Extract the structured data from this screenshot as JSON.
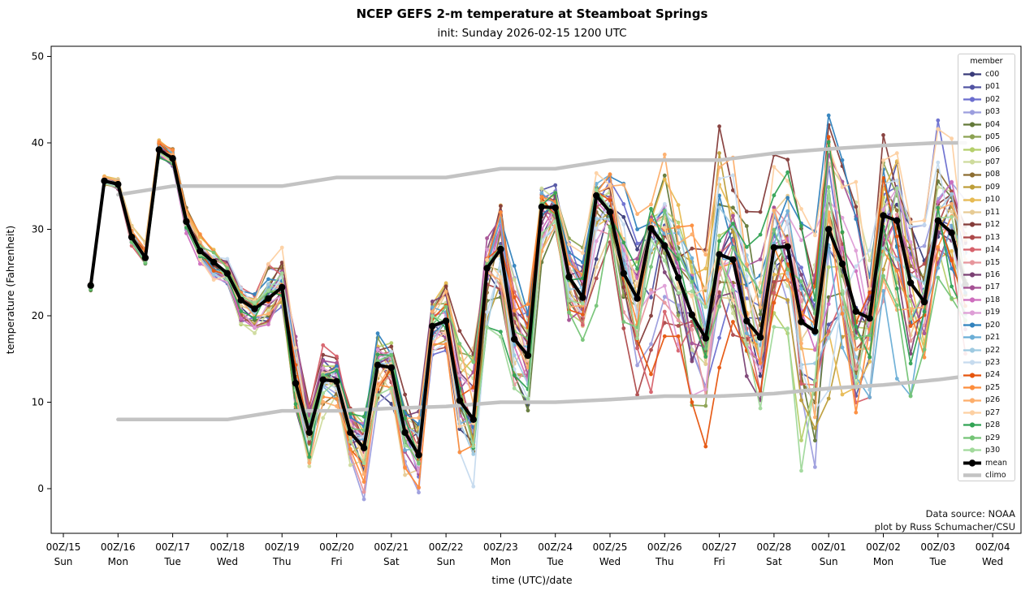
{
  "legend": {
    "title": "member",
    "mean_label": "mean",
    "climo_label": "climo"
  },
  "annotation": {
    "line1": "Data source: NOAA",
    "line2": "plot by Russ Schumacher/CSU"
  },
  "colors": {
    "mean": "#000000",
    "climo": "#c3c3c3",
    "spine": "#000000",
    "background": "#ffffff"
  },
  "chart_data": {
    "type": "line",
    "title": "NCEP GEFS 2-m temperature at Steamboat Springs",
    "subtitle": "init: Sunday 2026-02-15 1200 UTC",
    "xlabel": "time (UTC)/date",
    "ylabel": "temperature (Fahrenheit)",
    "yticks": [
      0,
      10,
      20,
      30,
      40,
      50
    ],
    "ylim": [
      -5.2,
      51.2
    ],
    "grid": false,
    "legend_position": "upper right",
    "xticks": [
      {
        "label": "00Z/15",
        "day": "Sun"
      },
      {
        "label": "00Z/16",
        "day": "Mon"
      },
      {
        "label": "00Z/17",
        "day": "Tue"
      },
      {
        "label": "00Z/18",
        "day": "Wed"
      },
      {
        "label": "00Z/19",
        "day": "Thu"
      },
      {
        "label": "00Z/20",
        "day": "Fri"
      },
      {
        "label": "00Z/21",
        "day": "Sat"
      },
      {
        "label": "00Z/22",
        "day": "Sun"
      },
      {
        "label": "00Z/23",
        "day": "Mon"
      },
      {
        "label": "00Z/24",
        "day": "Tue"
      },
      {
        "label": "00Z/25",
        "day": "Wed"
      },
      {
        "label": "00Z/26",
        "day": "Thu"
      },
      {
        "label": "00Z/27",
        "day": "Fri"
      },
      {
        "label": "00Z/28",
        "day": "Sat"
      },
      {
        "label": "00Z/01",
        "day": "Sun"
      },
      {
        "label": "00Z/02",
        "day": "Mon"
      },
      {
        "label": "00Z/03",
        "day": "Tue"
      },
      {
        "label": "00Z/04",
        "day": "Wed"
      }
    ],
    "times": [
      "12Z/15",
      "18Z/15",
      "00Z/16",
      "06Z/16",
      "12Z/16",
      "18Z/16",
      "00Z/17",
      "06Z/17",
      "12Z/17",
      "18Z/17",
      "00Z/18",
      "06Z/18",
      "12Z/18",
      "18Z/18",
      "00Z/19",
      "06Z/19",
      "12Z/19",
      "18Z/19",
      "00Z/20",
      "06Z/20",
      "12Z/20",
      "18Z/20",
      "00Z/21",
      "06Z/21",
      "12Z/21",
      "18Z/21",
      "00Z/22",
      "06Z/22",
      "12Z/22",
      "18Z/22",
      "00Z/23",
      "06Z/23",
      "12Z/23",
      "18Z/23",
      "00Z/24",
      "06Z/24",
      "12Z/24",
      "18Z/24",
      "00Z/25",
      "06Z/25",
      "12Z/25",
      "18Z/25",
      "00Z/26",
      "06Z/26",
      "12Z/26",
      "18Z/26",
      "00Z/27",
      "06Z/27",
      "12Z/27",
      "18Z/27",
      "00Z/28",
      "06Z/28",
      "12Z/28",
      "18Z/28",
      "00Z/01",
      "06Z/01",
      "12Z/01",
      "18Z/01",
      "00Z/02",
      "06Z/02",
      "12Z/02",
      "18Z/02",
      "00Z/03",
      "06Z/03",
      "12Z/03"
    ],
    "mean": [
      23.5,
      35.6,
      35.2,
      29.1,
      26.7,
      39.2,
      38.2,
      30.9,
      27.5,
      26.2,
      24.9,
      21.8,
      20.8,
      22.0,
      23.3,
      12.2,
      6.5,
      12.6,
      12.4,
      6.5,
      4.7,
      14.3,
      14.0,
      6.5,
      3.9,
      18.8,
      19.4,
      10.2,
      8.0,
      25.5,
      27.7,
      17.3,
      15.4,
      32.6,
      32.5,
      24.5,
      22.1,
      33.9,
      32.0,
      24.9,
      22.0,
      30.1,
      28.1,
      24.4,
      20.1,
      17.4,
      27.1,
      26.5,
      19.4,
      17.5,
      27.9,
      28.0,
      19.3,
      18.2,
      30.0,
      26.0,
      20.5,
      19.7,
      31.6,
      31.0,
      23.8,
      21.6,
      31.0,
      29.6,
      23.6
    ],
    "envelope_min": [
      22.5,
      34.8,
      34.3,
      27.8,
      25.8,
      38.2,
      37.2,
      29.5,
      26.0,
      23.5,
      23.0,
      18.0,
      17.5,
      17.5,
      20.0,
      8.0,
      0.0,
      6.0,
      8.0,
      1.0,
      -2.5,
      7.0,
      8.0,
      -1.5,
      -2.8,
      12.0,
      13.0,
      2.0,
      -1.0,
      16.0,
      16.0,
      9.0,
      7.0,
      23.0,
      27.0,
      16.0,
      16.0,
      20.0,
      28.0,
      17.0,
      8.0,
      5.0,
      17.0,
      13.0,
      6.0,
      4.7,
      14.0,
      13.0,
      9.0,
      4.8,
      14.0,
      13.0,
      0.0,
      -3.0,
      6.0,
      2.0,
      1.0,
      7.0,
      14.0,
      8.0,
      7.0,
      10.0,
      20.0,
      12.0,
      10.0
    ],
    "envelope_max": [
      24.0,
      36.3,
      36.0,
      30.5,
      28.5,
      40.3,
      39.5,
      32.5,
      29.5,
      28.0,
      27.5,
      24.0,
      23.0,
      27.5,
      28.0,
      20.5,
      10.5,
      17.5,
      16.0,
      10.0,
      9.0,
      19.0,
      18.5,
      12.0,
      12.5,
      23.0,
      25.0,
      20.0,
      19.0,
      31.0,
      37.0,
      29.0,
      25.0,
      36.5,
      36.6,
      31.0,
      29.0,
      36.5,
      41.0,
      39.5,
      33.5,
      34.0,
      40.2,
      36.5,
      34.0,
      30.0,
      42.5,
      39.0,
      33.0,
      32.0,
      40.1,
      40.3,
      34.0,
      33.0,
      46.6,
      38.0,
      36.0,
      33.0,
      48.5,
      45.0,
      36.0,
      33.0,
      42.6,
      40.5,
      35.0
    ],
    "climo": {
      "x_days": [
        1,
        2,
        3,
        4,
        5,
        6,
        7,
        8,
        9,
        10,
        11,
        12,
        13,
        14,
        15,
        16,
        16.5
      ],
      "upper": [
        34.0,
        35.0,
        35.0,
        35.0,
        36.0,
        36.0,
        36.0,
        37.0,
        37.0,
        38.0,
        38.0,
        38.0,
        38.8,
        39.3,
        39.7,
        40.0,
        40.0
      ],
      "lower": [
        8.0,
        8.0,
        8.0,
        9.0,
        9.0,
        9.3,
        9.5,
        10.0,
        10.0,
        10.3,
        10.7,
        10.7,
        11.0,
        11.6,
        12.0,
        12.6,
        13.0
      ]
    },
    "members": [
      {
        "name": "c00",
        "color": "#393b79"
      },
      {
        "name": "p01",
        "color": "#5254a3"
      },
      {
        "name": "p02",
        "color": "#6b6ecf"
      },
      {
        "name": "p03",
        "color": "#9c9ede"
      },
      {
        "name": "p04",
        "color": "#637939"
      },
      {
        "name": "p05",
        "color": "#8ca252"
      },
      {
        "name": "p06",
        "color": "#b5cf6b"
      },
      {
        "name": "p07",
        "color": "#cedb9c"
      },
      {
        "name": "p08",
        "color": "#8c6d31"
      },
      {
        "name": "p09",
        "color": "#bd9e39"
      },
      {
        "name": "p10",
        "color": "#e7ba52"
      },
      {
        "name": "p11",
        "color": "#e7cb94"
      },
      {
        "name": "p12",
        "color": "#843c39"
      },
      {
        "name": "p13",
        "color": "#ad494a"
      },
      {
        "name": "p14",
        "color": "#d6616b"
      },
      {
        "name": "p15",
        "color": "#e7969c"
      },
      {
        "name": "p16",
        "color": "#7b4173"
      },
      {
        "name": "p17",
        "color": "#a55194"
      },
      {
        "name": "p18",
        "color": "#ce6dbd"
      },
      {
        "name": "p19",
        "color": "#de9ed6"
      },
      {
        "name": "p20",
        "color": "#3182bd"
      },
      {
        "name": "p21",
        "color": "#6baed6"
      },
      {
        "name": "p22",
        "color": "#9ecae1"
      },
      {
        "name": "p23",
        "color": "#c6dbef"
      },
      {
        "name": "p24",
        "color": "#e6550d"
      },
      {
        "name": "p25",
        "color": "#fd8d3c"
      },
      {
        "name": "p26",
        "color": "#fdae6b"
      },
      {
        "name": "p27",
        "color": "#fdd0a2"
      },
      {
        "name": "p28",
        "color": "#31a354"
      },
      {
        "name": "p29",
        "color": "#74c476"
      },
      {
        "name": "p30",
        "color": "#a1d99b"
      }
    ]
  }
}
